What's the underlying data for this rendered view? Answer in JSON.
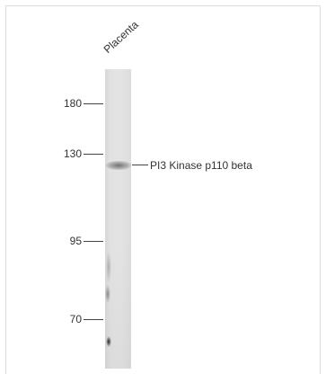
{
  "sample": "Placenta",
  "markers": [
    {
      "label": "180"
    },
    {
      "label": "130"
    },
    {
      "label": "95"
    },
    {
      "label": "70"
    }
  ],
  "band_label": "PI3 Kinase p110 beta"
}
